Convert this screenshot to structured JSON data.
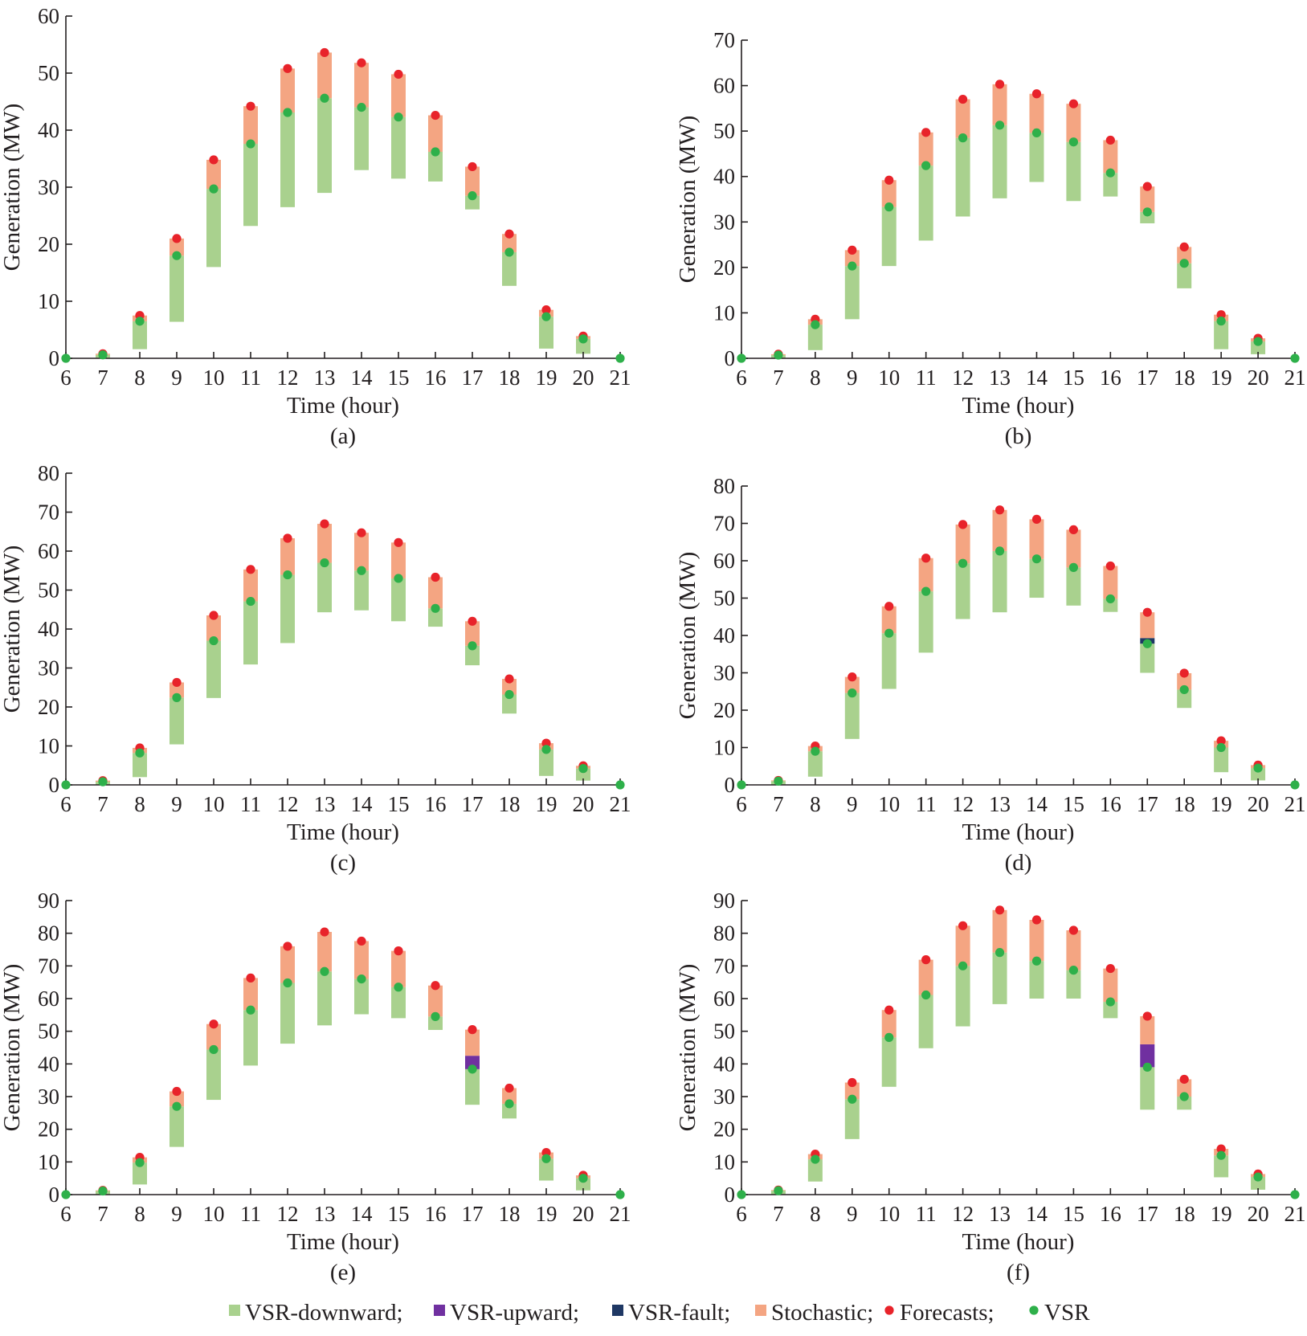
{
  "colors": {
    "vsr_downward": "#a9d18e",
    "vsr_upward": "#7030a0",
    "vsr_fault": "#1f3864",
    "stochastic": "#f4a582",
    "forecasts": "#e8232a",
    "vsr": "#2eb04a"
  },
  "legend": [
    {
      "key": "vsr_downward",
      "marker": "square",
      "label": "VSR-downward;"
    },
    {
      "key": "vsr_upward",
      "marker": "square",
      "label": "VSR-upward;"
    },
    {
      "key": "vsr_fault",
      "marker": "square",
      "label": "VSR-fault;"
    },
    {
      "key": "stochastic",
      "marker": "square",
      "label": "Stochastic;"
    },
    {
      "key": "forecasts",
      "marker": "dot",
      "label": "Forecasts;"
    },
    {
      "key": "vsr",
      "marker": "dot",
      "label": "VSR"
    }
  ],
  "chart_data": [
    {
      "type": "bar",
      "panel_label": "(a)",
      "xlabel": "Time (hour)",
      "ylabel": "Generation (MW)",
      "xlim": [
        6,
        21
      ],
      "ylim": [
        0,
        60
      ],
      "yticks": [
        0,
        10,
        20,
        30,
        40,
        50,
        60
      ],
      "x": [
        6,
        7,
        8,
        9,
        10,
        11,
        12,
        13,
        14,
        15,
        16,
        17,
        18,
        19,
        20,
        21
      ],
      "forecast": [
        0,
        0.8,
        7.5,
        21,
        34.8,
        44.2,
        50.8,
        53.6,
        51.8,
        49.8,
        42.6,
        33.6,
        21.8,
        8.5,
        3.9,
        0
      ],
      "vsr": [
        0,
        0.6,
        6.5,
        18,
        29.7,
        37.6,
        43.1,
        45.6,
        44,
        42.3,
        36.2,
        28.5,
        18.6,
        7.3,
        3.4,
        0
      ],
      "vsr_low": [
        0,
        0.1,
        1.6,
        6.4,
        16,
        23.2,
        26.5,
        29,
        33,
        31.5,
        31,
        26.1,
        12.7,
        1.7,
        0.8,
        0
      ],
      "vsr_upward": [
        null,
        null,
        null,
        null,
        null,
        null,
        null,
        null,
        null,
        null,
        null,
        null,
        null,
        null,
        null,
        null
      ],
      "vsr_fault": [
        null,
        null,
        null,
        null,
        null,
        null,
        null,
        null,
        null,
        null,
        null,
        null,
        null,
        null,
        null,
        null
      ]
    },
    {
      "type": "bar",
      "panel_label": "(b)",
      "xlabel": "Time (hour)",
      "ylabel": "Generation (MW)",
      "xlim": [
        6,
        21
      ],
      "ylim": [
        0,
        70
      ],
      "yticks": [
        0,
        10,
        20,
        30,
        40,
        50,
        60,
        70
      ],
      "x": [
        6,
        7,
        8,
        9,
        10,
        11,
        12,
        13,
        14,
        15,
        16,
        17,
        18,
        19,
        20,
        21
      ],
      "forecast": [
        0,
        0.9,
        8.6,
        23.8,
        39.2,
        49.7,
        57,
        60.3,
        58.2,
        56,
        48,
        37.8,
        24.5,
        9.6,
        4.4,
        0
      ],
      "vsr": [
        0,
        0.7,
        7.4,
        20.3,
        33.3,
        42.4,
        48.5,
        51.3,
        49.6,
        47.6,
        40.8,
        32.2,
        20.9,
        8.2,
        3.7,
        0
      ],
      "vsr_low": [
        0,
        0.1,
        1.8,
        8.6,
        20.3,
        25.9,
        31.2,
        35.2,
        38.8,
        34.6,
        35.6,
        29.7,
        15.4,
        2,
        0.9,
        0
      ],
      "vsr_upward": [
        null,
        null,
        null,
        null,
        null,
        null,
        null,
        null,
        null,
        null,
        null,
        null,
        null,
        null,
        null,
        null
      ],
      "vsr_fault": [
        null,
        null,
        null,
        null,
        null,
        null,
        null,
        null,
        null,
        null,
        null,
        null,
        null,
        null,
        null,
        null
      ]
    },
    {
      "type": "bar",
      "panel_label": "(c)",
      "xlabel": "Time (hour)",
      "ylabel": "Generation (MW)",
      "xlim": [
        6,
        21
      ],
      "ylim": [
        0,
        80
      ],
      "yticks": [
        0,
        10,
        20,
        30,
        40,
        50,
        60,
        70,
        80
      ],
      "x": [
        6,
        7,
        8,
        9,
        10,
        11,
        12,
        13,
        14,
        15,
        16,
        17,
        18,
        19,
        20,
        21
      ],
      "forecast": [
        0,
        1.1,
        9.5,
        26.3,
        43.5,
        55.3,
        63.3,
        67,
        64.7,
        62.2,
        53.3,
        42,
        27.2,
        10.7,
        4.9,
        0
      ],
      "vsr": [
        0,
        0.8,
        8.2,
        22.4,
        37,
        47.1,
        53.9,
        57,
        55,
        53,
        45.3,
        35.7,
        23.2,
        9.1,
        4.2,
        0
      ],
      "vsr_low": [
        0,
        0.1,
        2,
        10.4,
        22.3,
        30.9,
        36.4,
        44.3,
        44.8,
        42,
        40.6,
        30.7,
        18.3,
        2.3,
        1.1,
        0
      ],
      "vsr_upward": [
        null,
        null,
        null,
        null,
        null,
        null,
        null,
        null,
        null,
        null,
        null,
        null,
        null,
        null,
        null,
        null
      ],
      "vsr_fault": [
        null,
        null,
        null,
        null,
        null,
        null,
        null,
        null,
        null,
        null,
        null,
        null,
        null,
        null,
        null,
        null
      ]
    },
    {
      "type": "bar",
      "panel_label": "(d)",
      "xlabel": "Time (hour)",
      "ylabel": "Generation (MW)",
      "xlim": [
        6,
        21
      ],
      "ylim": [
        0,
        80
      ],
      "yticks": [
        0,
        10,
        20,
        30,
        40,
        50,
        60,
        70,
        80
      ],
      "x": [
        6,
        7,
        8,
        9,
        10,
        11,
        12,
        13,
        14,
        15,
        16,
        17,
        18,
        19,
        20,
        21
      ],
      "forecast": [
        0,
        1.2,
        10.4,
        28.9,
        47.8,
        60.7,
        69.7,
        73.6,
        71.1,
        68.3,
        58.6,
        46.2,
        29.9,
        11.8,
        5.3,
        0
      ],
      "vsr": [
        0,
        1,
        9,
        24.6,
        40.6,
        51.8,
        59.3,
        62.6,
        60.5,
        58.2,
        49.8,
        37.8,
        25.5,
        10,
        4.5,
        0
      ],
      "vsr_low": [
        0,
        0.1,
        2.2,
        12.3,
        25.7,
        35.4,
        44.4,
        46.2,
        50.1,
        48,
        46.3,
        30,
        20.6,
        3.4,
        1.2,
        0
      ],
      "vsr_upward": [
        null,
        null,
        null,
        null,
        null,
        null,
        null,
        null,
        null,
        null,
        null,
        null,
        null,
        null,
        null,
        null
      ],
      "vsr_fault": [
        null,
        null,
        null,
        null,
        null,
        null,
        null,
        null,
        null,
        null,
        null,
        39.3,
        null,
        null,
        null,
        null
      ]
    },
    {
      "type": "bar",
      "panel_label": "(e)",
      "xlabel": "Time (hour)",
      "ylabel": "Generation (MW)",
      "xlim": [
        6,
        21
      ],
      "ylim": [
        0,
        90
      ],
      "yticks": [
        0,
        10,
        20,
        30,
        40,
        50,
        60,
        70,
        80,
        90
      ],
      "x": [
        6,
        7,
        8,
        9,
        10,
        11,
        12,
        13,
        14,
        15,
        16,
        17,
        18,
        19,
        20,
        21
      ],
      "forecast": [
        0,
        1.3,
        11.4,
        31.6,
        52.2,
        66.3,
        76,
        80.4,
        77.6,
        74.6,
        64,
        50.5,
        32.6,
        12.9,
        5.9,
        0
      ],
      "vsr": [
        0,
        1.1,
        9.8,
        27,
        44.4,
        56.5,
        64.8,
        68.3,
        66,
        63.5,
        54.5,
        38.4,
        27.8,
        11,
        5,
        0
      ],
      "vsr_low": [
        0,
        0.1,
        3.1,
        14.6,
        29,
        39.5,
        46.2,
        51.8,
        55.2,
        54,
        50.4,
        27.5,
        23.3,
        4.3,
        1.3,
        0
      ],
      "vsr_upward": [
        null,
        null,
        null,
        null,
        null,
        null,
        null,
        null,
        null,
        null,
        null,
        42.5,
        null,
        null,
        null,
        null
      ],
      "vsr_fault": [
        null,
        null,
        null,
        null,
        null,
        null,
        null,
        null,
        null,
        null,
        null,
        null,
        null,
        null,
        null,
        null
      ]
    },
    {
      "type": "bar",
      "panel_label": "(f)",
      "xlabel": "Time (hour)",
      "ylabel": "Generation (MW)",
      "xlim": [
        6,
        21
      ],
      "ylim": [
        0,
        90
      ],
      "yticks": [
        0,
        10,
        20,
        30,
        40,
        50,
        60,
        70,
        80,
        90
      ],
      "x": [
        6,
        7,
        8,
        9,
        10,
        11,
        12,
        13,
        14,
        15,
        16,
        17,
        18,
        19,
        20,
        21
      ],
      "forecast": [
        0,
        1.4,
        12.4,
        34.3,
        56.5,
        71.9,
        82.3,
        87.1,
        84.1,
        80.9,
        69.2,
        54.6,
        35.3,
        14,
        6.3,
        0
      ],
      "vsr": [
        0,
        1.2,
        10.8,
        29.2,
        48.1,
        61.1,
        70,
        74.1,
        71.5,
        68.7,
        59,
        39,
        30,
        12,
        5.4,
        0
      ],
      "vsr_low": [
        0,
        0.1,
        4,
        17,
        33,
        44.8,
        51.5,
        58.3,
        60,
        60,
        54,
        26,
        26,
        5.3,
        1.5,
        0
      ],
      "vsr_upward": [
        null,
        null,
        null,
        null,
        null,
        null,
        null,
        null,
        null,
        null,
        null,
        46,
        null,
        null,
        null,
        null
      ],
      "vsr_fault": [
        null,
        null,
        null,
        null,
        null,
        null,
        null,
        null,
        null,
        null,
        null,
        null,
        null,
        null,
        null,
        null
      ]
    }
  ]
}
